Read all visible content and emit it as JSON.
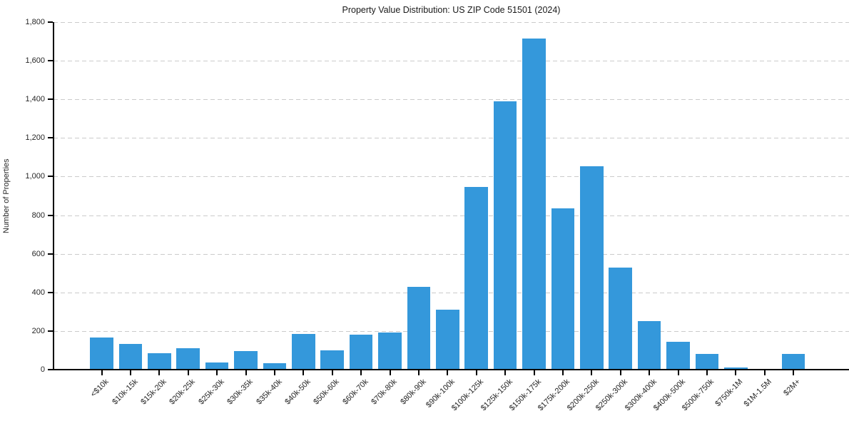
{
  "chart_data": {
    "type": "bar",
    "title": "Property Value Distribution: US ZIP Code 51501 (2024)",
    "xlabel": "",
    "ylabel": "Number of Properties",
    "categories": [
      "<$10k",
      "$10k-15k",
      "$15k-20k",
      "$20k-25k",
      "$25k-30k",
      "$30k-35k",
      "$35k-40k",
      "$40k-50k",
      "$50k-60k",
      "$60k-70k",
      "$70k-80k",
      "$80k-90k",
      "$90k-100k",
      "$100k-125k",
      "$125k-150k",
      "$150k-175k",
      "$175k-200k",
      "$200k-250k",
      "$250k-300k",
      "$300k-400k",
      "$400k-500k",
      "$500k-750k",
      "$750k-1M",
      "$1M-1.5M",
      "$2M+"
    ],
    "values": [
      165,
      132,
      85,
      112,
      38,
      96,
      35,
      185,
      100,
      181,
      192,
      430,
      312,
      945,
      1390,
      1715,
      835,
      1052,
      530,
      250,
      145,
      82,
      12,
      5,
      80
    ],
    "ylim": [
      0,
      1800
    ],
    "ytick_interval": 200,
    "ytick_labels": [
      "0",
      "200",
      "400",
      "600",
      "800",
      "1,000",
      "1,200",
      "1,400",
      "1,600",
      "1,800"
    ],
    "grid": "horizontal-dashed",
    "legend": "none",
    "bar_color": "#3498db",
    "grid_color": "#cbcbcb",
    "axis_color": "#000000",
    "text_color": "#262626"
  }
}
